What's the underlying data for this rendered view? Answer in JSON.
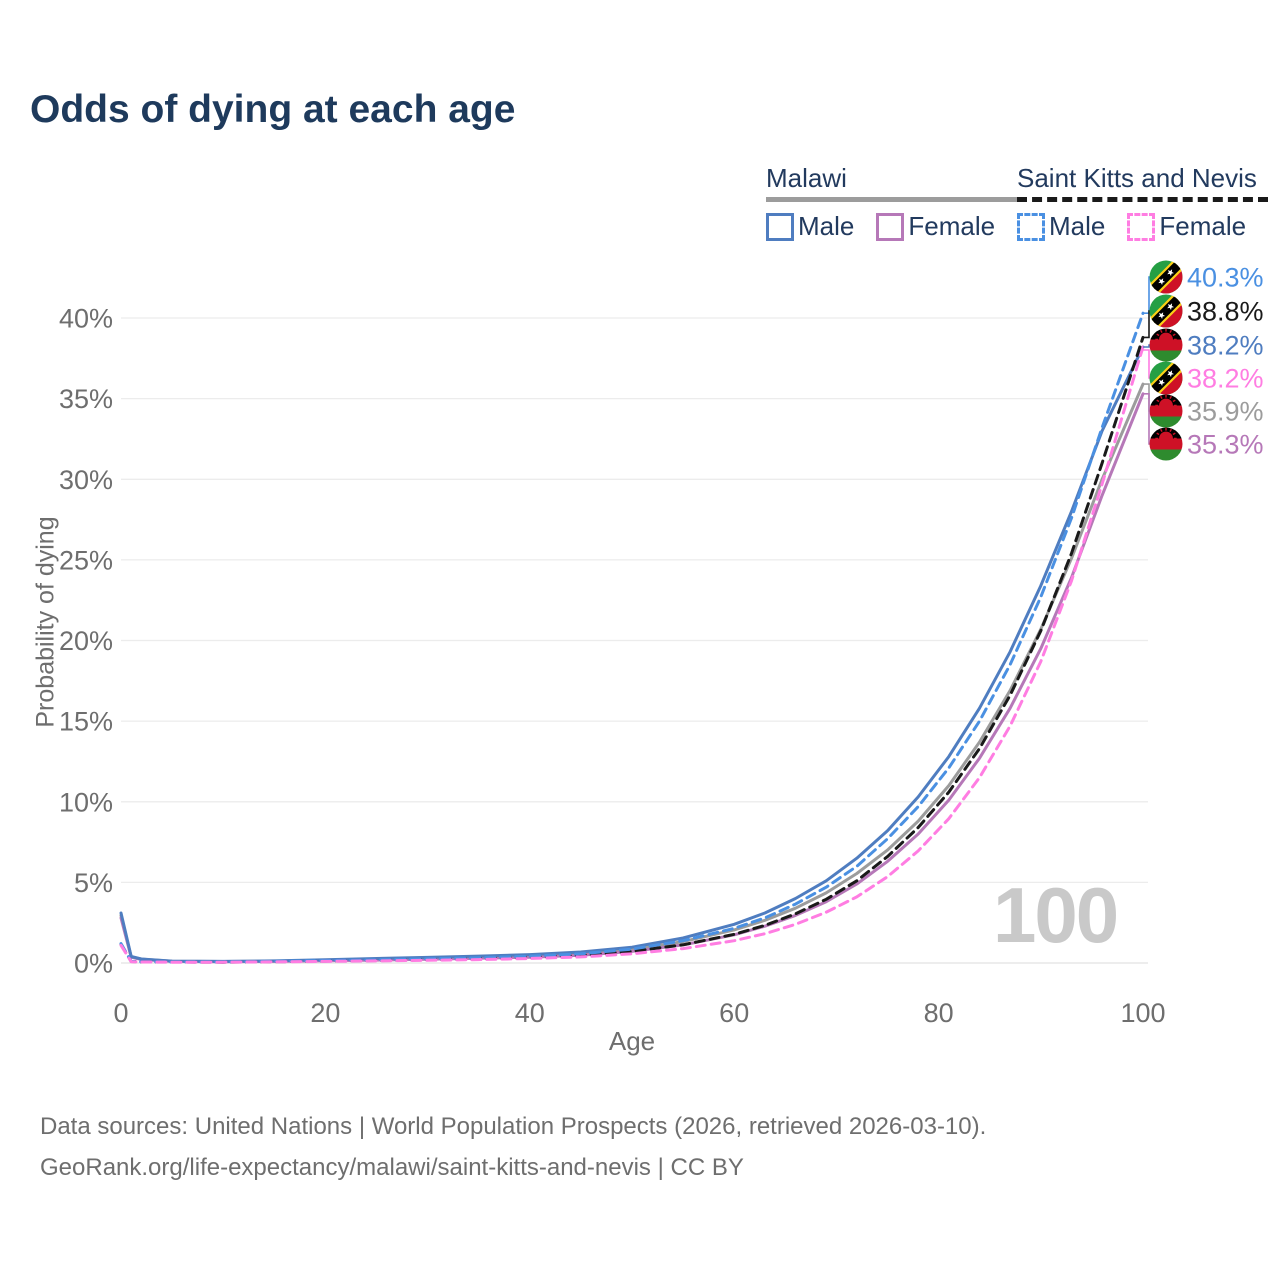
{
  "title": "Odds of dying at each age",
  "watermark": "100",
  "legend": {
    "groups": [
      {
        "id": "malawi",
        "title": "Malawi",
        "line_style": "solid",
        "line_color": "#9c9c9c",
        "items": [
          {
            "label": "Male",
            "color": "#4f7dc0",
            "dashed": false
          },
          {
            "label": "Female",
            "color": "#b678b8",
            "dashed": false
          }
        ]
      },
      {
        "id": "saint-kitts-and-nevis",
        "title": "Saint Kitts and Nevis",
        "line_style": "dashed",
        "line_color": "#1a1a1a",
        "items": [
          {
            "label": "Male",
            "color": "#4a90e2",
            "dashed": true
          },
          {
            "label": "Female",
            "color": "#ff7de2",
            "dashed": true
          }
        ]
      }
    ]
  },
  "axes": {
    "x": {
      "title": "Age",
      "tick_values": [
        0,
        20,
        40,
        60,
        80,
        100
      ],
      "tick_labels": [
        "0",
        "20",
        "40",
        "60",
        "80",
        "100"
      ],
      "range": [
        0,
        100
      ]
    },
    "y": {
      "title": "Probability of dying",
      "tick_values": [
        0,
        5,
        10,
        15,
        20,
        25,
        30,
        35,
        40
      ],
      "tick_labels": [
        "0%",
        "5%",
        "10%",
        "15%",
        "20%",
        "25%",
        "30%",
        "35%",
        "40%"
      ],
      "range": [
        0,
        40
      ]
    }
  },
  "end_labels": [
    {
      "series": "saint-kitts-and-nevis-male",
      "value": 40.3,
      "value_label": "40.3%",
      "color": "#4a90e2",
      "flag": "saint-kitts-and-nevis"
    },
    {
      "series": "saint-kitts-and-nevis-both",
      "value": 38.8,
      "value_label": "38.8%",
      "color": "#1a1a1a",
      "flag": "saint-kitts-and-nevis"
    },
    {
      "series": "malawi-male",
      "value": 38.2,
      "value_label": "38.2%",
      "color": "#4f7dc0",
      "flag": "malawi"
    },
    {
      "series": "saint-kitts-and-nevis-female",
      "value": 38.2,
      "value_label": "38.2%",
      "color": "#ff7de2",
      "flag": "saint-kitts-and-nevis"
    },
    {
      "series": "malawi-both",
      "value": 35.9,
      "value_label": "35.9%",
      "color": "#9c9c9c",
      "flag": "malawi"
    },
    {
      "series": "malawi-female",
      "value": 35.3,
      "value_label": "35.3%",
      "color": "#b678b8",
      "flag": "malawi"
    }
  ],
  "flags": {
    "malawi": {
      "black": "#000000",
      "red": "#ce1126",
      "green": "#2e8b2e"
    },
    "saint-kitts-and-nevis": {
      "green": "#259f44",
      "red": "#ce1126",
      "yellow": "#fcd116",
      "black": "#000000",
      "white": "#ffffff"
    }
  },
  "footer": {
    "line1": "Data sources: United Nations | World Population Prospects (2026, retrieved 2026-03-10).",
    "line2": "GeoRank.org/life-expectancy/malawi/saint-kitts-and-nevis | CC BY"
  },
  "chart_data": {
    "type": "line",
    "title": "Odds of dying at each age",
    "xlabel": "Age",
    "ylabel": "Probability of dying",
    "xlim": [
      0,
      100
    ],
    "ylim": [
      0,
      40
    ],
    "unit": "percent",
    "grid": "horizontal",
    "legend_position": "top-right",
    "x": [
      0,
      1,
      2,
      5,
      10,
      15,
      20,
      25,
      30,
      35,
      40,
      45,
      50,
      55,
      60,
      63,
      66,
      69,
      72,
      75,
      78,
      81,
      84,
      87,
      90,
      93,
      96,
      100
    ],
    "series": [
      {
        "id": "malawi-both",
        "name": "Malawi (both sexes)",
        "color": "#9c9c9c",
        "dashed": false,
        "end_value": 35.9,
        "values": [
          2.95,
          0.38,
          0.24,
          0.11,
          0.09,
          0.12,
          0.17,
          0.23,
          0.29,
          0.36,
          0.44,
          0.58,
          0.84,
          1.33,
          2.05,
          2.65,
          3.4,
          4.35,
          5.55,
          7.0,
          8.8,
          11.0,
          13.7,
          16.9,
          20.7,
          25.1,
          30.0,
          35.9
        ]
      },
      {
        "id": "malawi-female",
        "name": "Malawi Female",
        "color": "#b678b8",
        "dashed": false,
        "end_value": 35.3,
        "values": [
          2.8,
          0.36,
          0.22,
          0.1,
          0.08,
          0.1,
          0.14,
          0.18,
          0.23,
          0.29,
          0.36,
          0.48,
          0.72,
          1.12,
          1.75,
          2.28,
          2.95,
          3.8,
          4.9,
          6.3,
          8.0,
          10.1,
          12.7,
          15.8,
          19.5,
          23.9,
          29.0,
          35.3
        ]
      },
      {
        "id": "malawi-male",
        "name": "Malawi Male",
        "color": "#4f7dc0",
        "dashed": false,
        "end_value": 38.2,
        "values": [
          3.1,
          0.4,
          0.25,
          0.12,
          0.1,
          0.13,
          0.2,
          0.28,
          0.35,
          0.43,
          0.52,
          0.68,
          0.98,
          1.55,
          2.4,
          3.1,
          4.0,
          5.1,
          6.5,
          8.2,
          10.3,
          12.8,
          15.8,
          19.3,
          23.4,
          28.0,
          33.0,
          38.2
        ]
      },
      {
        "id": "saint-kitts-and-nevis-both",
        "name": "Saint Kitts and Nevis (both sexes)",
        "color": "#1a1a1a",
        "dashed": true,
        "end_value": 38.8,
        "values": [
          1.15,
          0.09,
          0.07,
          0.06,
          0.05,
          0.08,
          0.12,
          0.16,
          0.21,
          0.27,
          0.35,
          0.47,
          0.72,
          1.13,
          1.78,
          2.33,
          3.05,
          3.95,
          5.1,
          6.6,
          8.4,
          10.6,
          13.3,
          16.6,
          20.6,
          25.4,
          31.0,
          38.8
        ]
      },
      {
        "id": "saint-kitts-and-nevis-male",
        "name": "Saint Kitts and Nevis Male",
        "color": "#4a90e2",
        "dashed": true,
        "end_value": 40.3,
        "values": [
          1.2,
          0.1,
          0.08,
          0.06,
          0.06,
          0.1,
          0.15,
          0.2,
          0.26,
          0.32,
          0.42,
          0.57,
          0.86,
          1.38,
          2.15,
          2.8,
          3.65,
          4.7,
          6.0,
          7.7,
          9.7,
          12.1,
          15.0,
          18.5,
          22.7,
          27.6,
          33.2,
          40.3
        ]
      },
      {
        "id": "saint-kitts-and-nevis-female",
        "name": "Saint Kitts and Nevis Female",
        "color": "#ff7de2",
        "dashed": true,
        "end_value": 38.2,
        "values": [
          1.1,
          0.08,
          0.06,
          0.05,
          0.05,
          0.07,
          0.1,
          0.13,
          0.17,
          0.21,
          0.28,
          0.38,
          0.57,
          0.89,
          1.38,
          1.82,
          2.4,
          3.15,
          4.1,
          5.35,
          6.95,
          8.95,
          11.5,
          14.7,
          18.7,
          23.7,
          29.7,
          38.2
        ]
      }
    ]
  }
}
